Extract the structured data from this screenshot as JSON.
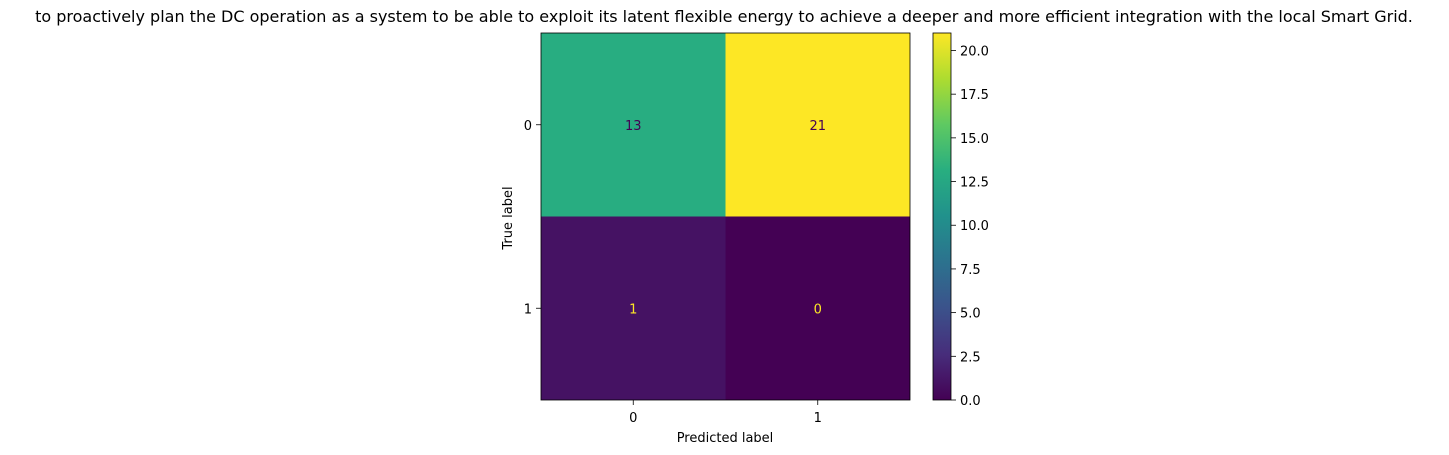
{
  "chart_data": {
    "type": "heatmap",
    "title": "to proactively plan the DC operation as a system to be able to exploit its latent flexible energy to achieve a deeper and more efficient integration with the local Smart Grid.",
    "xlabel": "Predicted label",
    "ylabel": "True label",
    "x_categories": [
      "0",
      "1"
    ],
    "y_categories": [
      "0",
      "1"
    ],
    "matrix": [
      [
        13,
        21
      ],
      [
        1,
        0
      ]
    ],
    "colormap": "viridis",
    "colorbar": {
      "range": [
        0,
        21
      ],
      "ticks": [
        "0.0",
        "2.5",
        "5.0",
        "7.5",
        "10.0",
        "12.5",
        "15.0",
        "17.5",
        "20.0"
      ]
    },
    "text_colors": {
      "dark": "#440154",
      "light": "#fde725"
    }
  }
}
